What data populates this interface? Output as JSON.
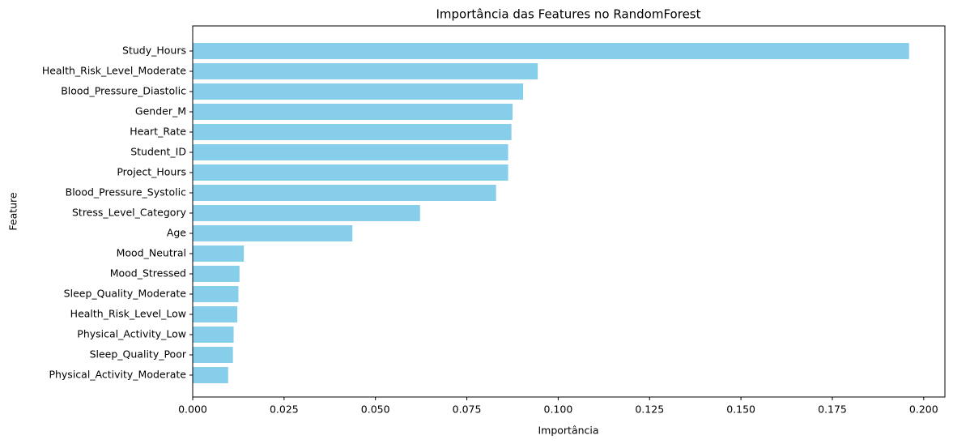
{
  "chart_data": {
    "type": "bar",
    "orientation": "horizontal",
    "title": "Importância das Features no RandomForest",
    "xlabel": "Importância",
    "ylabel": "Feature",
    "xlim": [
      0,
      0.2058
    ],
    "xticks": [
      0.0,
      0.025,
      0.05,
      0.075,
      0.1,
      0.125,
      0.15,
      0.175,
      0.2
    ],
    "xtick_labels": [
      "0.000",
      "0.025",
      "0.050",
      "0.075",
      "0.100",
      "0.125",
      "0.150",
      "0.175",
      "0.200"
    ],
    "grid": false,
    "bar_color": "#87CEEB",
    "categories": [
      "Study_Hours",
      "Health_Risk_Level_Moderate",
      "Blood_Pressure_Diastolic",
      "Gender_M",
      "Heart_Rate",
      "Student_ID",
      "Project_Hours",
      "Blood_Pressure_Systolic",
      "Stress_Level_Category",
      "Age",
      "Mood_Neutral",
      "Mood_Stressed",
      "Sleep_Quality_Moderate",
      "Health_Risk_Level_Low",
      "Physical_Activity_Low",
      "Sleep_Quality_Poor",
      "Physical_Activity_Moderate"
    ],
    "values": [
      0.196,
      0.0944,
      0.0904,
      0.0875,
      0.0872,
      0.0863,
      0.0863,
      0.083,
      0.0622,
      0.0437,
      0.014,
      0.0128,
      0.0125,
      0.0122,
      0.0112,
      0.011,
      0.0097
    ]
  }
}
